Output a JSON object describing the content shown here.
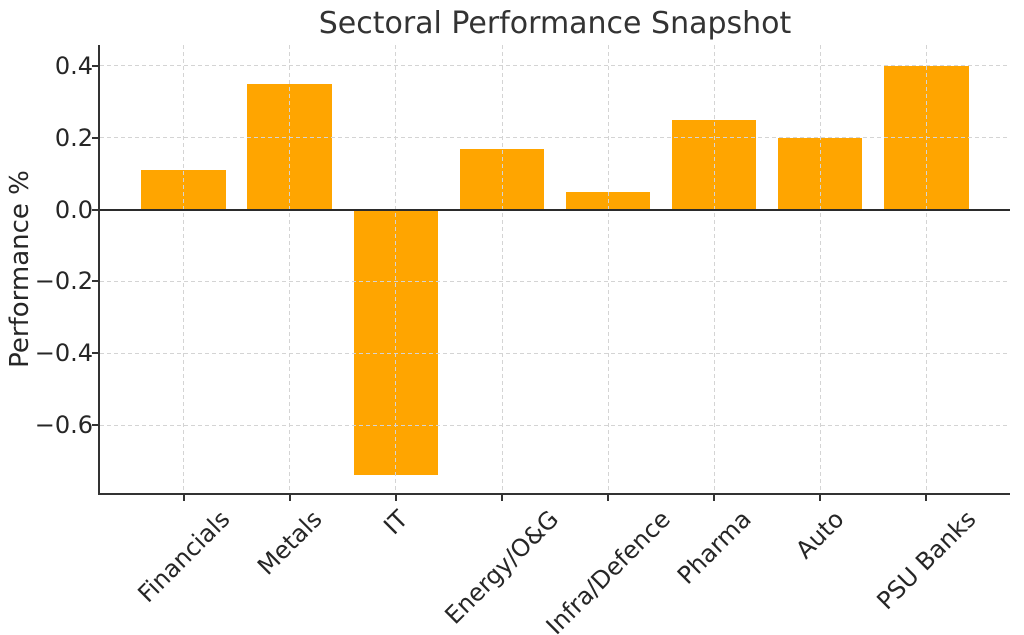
{
  "chart_data": {
    "type": "bar",
    "title": "Sectoral Performance Snapshot",
    "xlabel": "",
    "ylabel": "Performance %",
    "categories": [
      "Financials",
      "Metals",
      "IT",
      "Energy/O&G",
      "Infra/Defence",
      "Pharma",
      "Auto",
      "PSU Banks"
    ],
    "values": [
      0.11,
      0.35,
      -0.74,
      0.17,
      0.05,
      0.25,
      0.2,
      0.4
    ],
    "yticks": [
      0.4,
      0.2,
      0.0,
      -0.2,
      -0.4,
      -0.6
    ],
    "ytick_labels": [
      "0.4",
      "0.2",
      "0.0",
      "−0.2",
      "−0.4",
      "−0.6"
    ],
    "ylim": [
      -0.789,
      0.458
    ],
    "xlim": [
      -0.79,
      7.79
    ],
    "bar_width": 0.8,
    "bar_color": "#FFA500",
    "grid": true,
    "grid_style": "dashed",
    "grid_above_bars": true,
    "zero_line": true,
    "zero_line_color": "#2b2b2b",
    "spine_color": "#333333",
    "legend": "none"
  }
}
